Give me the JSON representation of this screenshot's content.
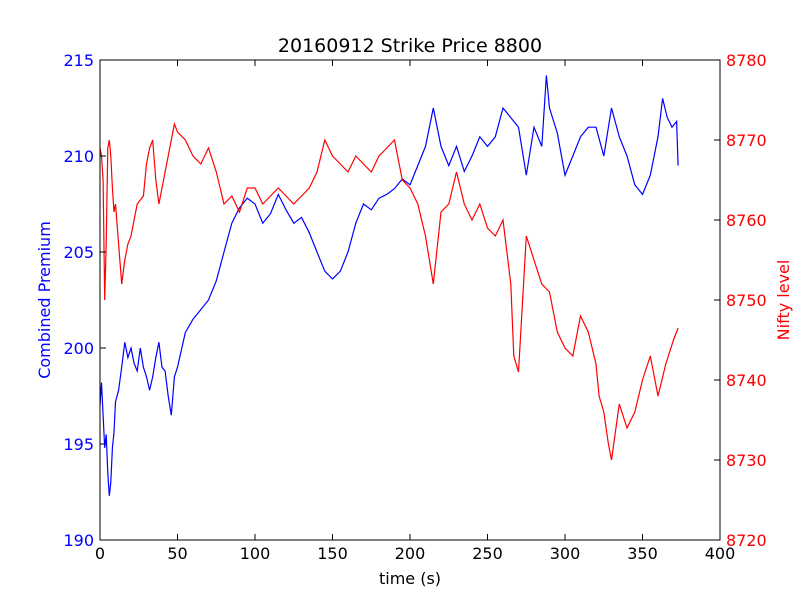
{
  "chart_data": {
    "type": "line",
    "title": "20160912 Strike Price 8800",
    "xlabel": "time (s)",
    "ylabel_left": "Combined Premium",
    "ylabel_right": "Nifty level",
    "xlim": [
      0,
      400
    ],
    "ylim_left": [
      190,
      215
    ],
    "ylim_right": [
      8720,
      8780
    ],
    "x_ticks": [
      "0",
      "50",
      "100",
      "150",
      "200",
      "250",
      "300",
      "350",
      "400"
    ],
    "y_ticks_left": [
      "190",
      "195",
      "200",
      "205",
      "210",
      "215"
    ],
    "y_ticks_right": [
      "8720",
      "8730",
      "8740",
      "8750",
      "8760",
      "8770",
      "8780"
    ],
    "grid": false,
    "colors": {
      "left_axis": "#0000ff",
      "right_axis": "#ff0000"
    },
    "series": [
      {
        "axis": "left",
        "color": "#0000ff",
        "x": [
          0,
          1,
          2,
          3,
          4,
          5,
          6,
          7,
          8,
          9,
          10,
          12,
          14,
          16,
          18,
          20,
          22,
          24,
          26,
          28,
          30,
          32,
          34,
          36,
          38,
          40,
          42,
          44,
          46,
          48,
          50,
          55,
          60,
          65,
          70,
          75,
          80,
          85,
          90,
          95,
          100,
          105,
          110,
          115,
          120,
          125,
          130,
          135,
          140,
          145,
          150,
          155,
          160,
          165,
          170,
          175,
          180,
          185,
          190,
          195,
          200,
          205,
          210,
          215,
          220,
          225,
          230,
          235,
          240,
          245,
          250,
          255,
          260,
          265,
          270,
          275,
          280,
          285,
          288,
          290,
          295,
          300,
          305,
          310,
          315,
          320,
          325,
          330,
          335,
          340,
          345,
          350,
          355,
          360,
          363,
          366,
          369,
          372,
          373
        ],
        "y": [
          197.0,
          198.2,
          196.5,
          194.8,
          195.5,
          193.5,
          192.3,
          193.0,
          194.8,
          195.6,
          197.2,
          197.8,
          199.0,
          200.3,
          199.5,
          200.0,
          199.2,
          198.8,
          200.0,
          199.0,
          198.5,
          197.8,
          198.5,
          199.5,
          200.3,
          199.0,
          198.8,
          197.5,
          196.5,
          198.5,
          199.0,
          200.8,
          201.5,
          202.0,
          202.5,
          203.5,
          205.0,
          206.5,
          207.3,
          207.8,
          207.5,
          206.5,
          207.0,
          208.0,
          207.2,
          206.5,
          206.8,
          206.0,
          205.0,
          204.0,
          203.6,
          204.0,
          205.0,
          206.5,
          207.5,
          207.2,
          207.8,
          208.0,
          208.3,
          208.8,
          208.5,
          209.5,
          210.5,
          212.5,
          210.5,
          209.5,
          210.5,
          209.2,
          210.0,
          211.0,
          210.5,
          211.0,
          212.5,
          212.0,
          211.5,
          209.0,
          211.5,
          210.5,
          214.2,
          212.5,
          211.2,
          209.0,
          210.0,
          211.0,
          211.5,
          211.5,
          210.0,
          212.5,
          211.0,
          210.0,
          208.5,
          208.0,
          209.0,
          211.0,
          213.0,
          212.0,
          211.5,
          211.8,
          209.5
        ]
      },
      {
        "axis": "right",
        "color": "#ff0000",
        "x": [
          0,
          1,
          2,
          3,
          4,
          5,
          6,
          7,
          8,
          9,
          10,
          12,
          14,
          16,
          18,
          20,
          22,
          24,
          26,
          28,
          30,
          32,
          34,
          36,
          38,
          40,
          42,
          44,
          46,
          48,
          50,
          55,
          60,
          65,
          70,
          75,
          80,
          85,
          90,
          95,
          100,
          105,
          110,
          115,
          120,
          125,
          130,
          135,
          140,
          145,
          150,
          155,
          160,
          165,
          170,
          175,
          180,
          185,
          190,
          195,
          200,
          205,
          210,
          215,
          220,
          225,
          230,
          235,
          240,
          245,
          250,
          255,
          260,
          265,
          267,
          270,
          275,
          280,
          285,
          290,
          295,
          300,
          305,
          310,
          315,
          320,
          322,
          325,
          328,
          330,
          335,
          340,
          345,
          350,
          355,
          360,
          365,
          370,
          373
        ],
        "y": [
          8769.0,
          8768.0,
          8765.0,
          8750.0,
          8757.0,
          8769.0,
          8770.0,
          8768.0,
          8764.0,
          8761.0,
          8762.0,
          8757.0,
          8752.0,
          8755.0,
          8757.0,
          8758.0,
          8760.0,
          8762.0,
          8762.5,
          8763.0,
          8767.0,
          8769.0,
          8770.0,
          8765.0,
          8762.0,
          8764.0,
          8766.0,
          8768.0,
          8770.0,
          8772.0,
          8771.0,
          8770.0,
          8768.0,
          8767.0,
          8769.0,
          8766.0,
          8762.0,
          8763.0,
          8761.0,
          8764.0,
          8764.0,
          8762.0,
          8763.0,
          8764.0,
          8763.0,
          8762.0,
          8763.0,
          8764.0,
          8766.0,
          8770.0,
          8768.0,
          8767.0,
          8766.0,
          8768.0,
          8767.0,
          8766.0,
          8768.0,
          8769.0,
          8770.0,
          8765.0,
          8764.0,
          8762.0,
          8758.0,
          8752.0,
          8761.0,
          8762.0,
          8766.0,
          8762.0,
          8760.0,
          8762.0,
          8759.0,
          8758.0,
          8760.0,
          8752.0,
          8743.0,
          8741.0,
          8758.0,
          8755.0,
          8752.0,
          8751.0,
          8746.0,
          8744.0,
          8743.0,
          8748.0,
          8746.0,
          8742.0,
          8738.0,
          8736.0,
          8732.0,
          8730.0,
          8737.0,
          8734.0,
          8736.0,
          8740.0,
          8743.0,
          8738.0,
          8742.0,
          8745.0,
          8746.5
        ]
      }
    ]
  }
}
